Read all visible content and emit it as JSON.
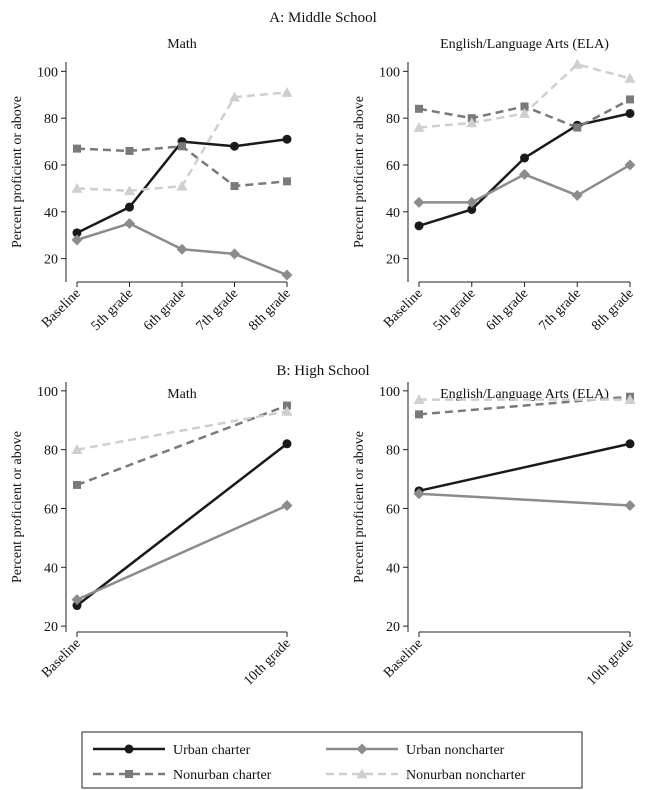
{
  "panel_titles": {
    "middle": "A: Middle School",
    "high": "B: High School"
  },
  "ylabel": "Percent proficient or above",
  "series_styles": {
    "Urban charter": {
      "color": "#1a1a1a",
      "dash": "",
      "marker": "circle"
    },
    "Urban noncharter": {
      "color": "#8c8c8c",
      "dash": "",
      "marker": "diamond"
    },
    "Nonurban charter": {
      "color": "#7a7a7a",
      "dash": "8,5",
      "marker": "square"
    },
    "Nonurban noncharter": {
      "color": "#cfcfcf",
      "dash": "8,5",
      "marker": "triangle"
    }
  },
  "legend": {
    "placement": "bottom",
    "entries": [
      "Urban charter",
      "Urban noncharter",
      "Nonurban charter",
      "Nonurban noncharter"
    ]
  },
  "chart_data": [
    {
      "type": "line",
      "panel": "A: Middle School",
      "title": "Math",
      "ylabel": "Percent proficient or above",
      "categories": [
        "Baseline",
        "5th grade",
        "6th grade",
        "7th grade",
        "8th grade"
      ],
      "ylim": [
        10,
        104
      ],
      "yticks": [
        20,
        40,
        60,
        80,
        100
      ],
      "series": [
        {
          "name": "Urban charter",
          "values": [
            31,
            42,
            70,
            68,
            71
          ]
        },
        {
          "name": "Urban noncharter",
          "values": [
            28,
            35,
            24,
            22,
            13
          ]
        },
        {
          "name": "Nonurban charter",
          "values": [
            67,
            66,
            68,
            51,
            53
          ]
        },
        {
          "name": "Nonurban noncharter",
          "values": [
            50,
            49,
            51,
            89,
            91
          ]
        }
      ]
    },
    {
      "type": "line",
      "panel": "A: Middle School",
      "title": "English/Language Arts (ELA)",
      "ylabel": "Percent proficient or above",
      "categories": [
        "Baseline",
        "5th grade",
        "6th grade",
        "7th grade",
        "8th grade"
      ],
      "ylim": [
        10,
        104
      ],
      "yticks": [
        20,
        40,
        60,
        80,
        100
      ],
      "series": [
        {
          "name": "Urban charter",
          "values": [
            34,
            41,
            63,
            77,
            82
          ]
        },
        {
          "name": "Urban noncharter",
          "values": [
            44,
            44,
            56,
            47,
            60
          ]
        },
        {
          "name": "Nonurban charter",
          "values": [
            84,
            80,
            85,
            76,
            88
          ]
        },
        {
          "name": "Nonurban noncharter",
          "values": [
            76,
            78,
            82,
            103,
            97
          ]
        }
      ]
    },
    {
      "type": "line",
      "panel": "B: High School",
      "title": "Math",
      "ylabel": "Percent proficient or above",
      "categories": [
        "Baseline",
        "10th grade"
      ],
      "ylim": [
        18,
        103
      ],
      "yticks": [
        20,
        40,
        60,
        80,
        100
      ],
      "series": [
        {
          "name": "Urban charter",
          "values": [
            27,
            82
          ]
        },
        {
          "name": "Urban noncharter",
          "values": [
            29,
            61
          ]
        },
        {
          "name": "Nonurban charter",
          "values": [
            68,
            95
          ]
        },
        {
          "name": "Nonurban noncharter",
          "values": [
            80,
            93
          ]
        }
      ]
    },
    {
      "type": "line",
      "panel": "B: High School",
      "title": "English/Language Arts (ELA)",
      "ylabel": "Percent proficient or above",
      "categories": [
        "Baseline",
        "10th grade"
      ],
      "ylim": [
        18,
        103
      ],
      "yticks": [
        20,
        40,
        60,
        80,
        100
      ],
      "series": [
        {
          "name": "Urban charter",
          "values": [
            66,
            82
          ]
        },
        {
          "name": "Urban noncharter",
          "values": [
            65,
            61
          ]
        },
        {
          "name": "Nonurban charter",
          "values": [
            92,
            98
          ]
        },
        {
          "name": "Nonurban noncharter",
          "values": [
            97,
            97
          ]
        }
      ]
    }
  ]
}
